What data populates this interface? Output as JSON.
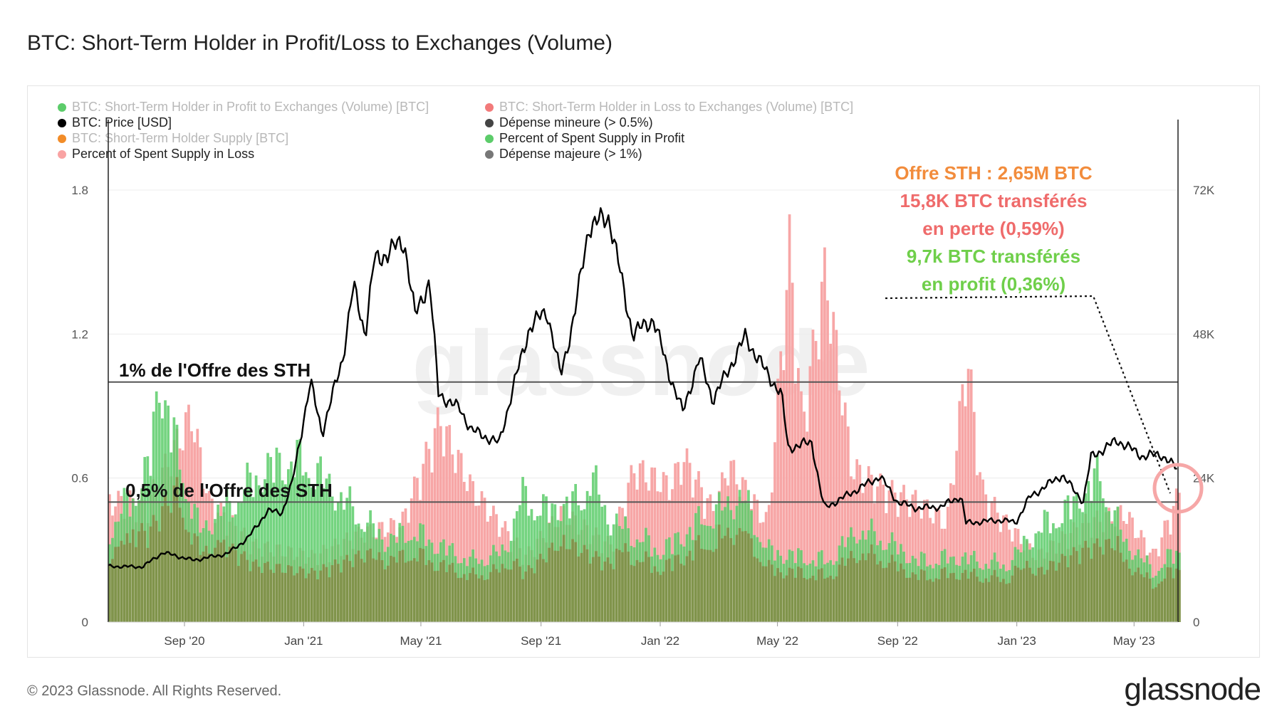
{
  "title": "BTC: Short-Term Holder in Profit/Loss to Exchanges (Volume)",
  "footer": {
    "copyright": "© 2023 Glassnode. All Rights Reserved.",
    "brand": "glassnode"
  },
  "watermark": "glassnode",
  "legend": [
    {
      "label": "BTC: Short-Term Holder in Profit to Exchanges (Volume) [BTC]",
      "color": "#5ccc6a",
      "state": "faded"
    },
    {
      "label": "BTC: Short-Term Holder in Loss to Exchanges (Volume) [BTC]",
      "color": "#f27a7a",
      "state": "faded"
    },
    {
      "label": "BTC: Price [USD]",
      "color": "#000000",
      "state": "active"
    },
    {
      "label": "Dépense mineure (> 0.5%)",
      "color": "#444444",
      "state": "active"
    },
    {
      "label": "BTC: Short-Term Holder Supply [BTC]",
      "color": "#f28c28",
      "state": "faded"
    },
    {
      "label": "Percent of Spent Supply in Profit",
      "color": "#5ccc6a",
      "state": "active"
    },
    {
      "label": "Percent of Spent Supply in Loss",
      "color": "#f9a3a3",
      "state": "active"
    },
    {
      "label": "Dépense majeure (> 1%)",
      "color": "#777777",
      "state": "active"
    }
  ],
  "annotations": {
    "line1": "Offre STH : 2,65M BTC",
    "line2": "15,8K BTC transférés",
    "line3": "en perte (0,59%)",
    "line4": "9,7k BTC transférés",
    "line5": "en profit (0,36%)",
    "threshold_major": "1% de l'Offre des STH",
    "threshold_minor": "0,5% de l'Offre des STH",
    "colors": {
      "orange": "#f28c3c",
      "red": "#ef6b6b",
      "green": "#6fcf4a"
    }
  },
  "chart_data": {
    "type": "area",
    "x_start": "2020-06-15",
    "x_end": "2023-06-15",
    "x_ticks": [
      "Sep '20",
      "Jan '21",
      "May '21",
      "Sep '21",
      "Jan '22",
      "May '22",
      "Sep '22",
      "Jan '23",
      "May '23"
    ],
    "x_tick_dates": [
      "2020-09-01",
      "2021-01-01",
      "2021-05-01",
      "2021-09-01",
      "2022-01-01",
      "2022-05-01",
      "2022-09-01",
      "2023-01-01",
      "2023-05-01"
    ],
    "y_left": {
      "label": "",
      "ylim": [
        0,
        1.8
      ],
      "ticks": [
        "0",
        "0.6",
        "1.2",
        "1.8"
      ]
    },
    "y_right": {
      "label": "",
      "ylim": [
        0,
        72000
      ],
      "ticks": [
        "0",
        "24K",
        "48K",
        "72K"
      ]
    },
    "thresholds": [
      {
        "name": "Dépense majeure (> 1%)",
        "value": 1.0
      },
      {
        "name": "Dépense mineure (> 0.5%)",
        "value": 0.5
      }
    ],
    "series": [
      {
        "name": "BTC: Price [USD]",
        "axis": "right",
        "points": [
          [
            "2020-06-15",
            9300
          ],
          [
            "2020-07-20",
            9200
          ],
          [
            "2020-08-10",
            11600
          ],
          [
            "2020-09-10",
            10300
          ],
          [
            "2020-10-15",
            11400
          ],
          [
            "2020-11-05",
            14000
          ],
          [
            "2020-11-25",
            18500
          ],
          [
            "2020-12-10",
            18300
          ],
          [
            "2020-12-20",
            23000
          ],
          [
            "2021-01-08",
            40000
          ],
          [
            "2021-01-20",
            31500
          ],
          [
            "2021-02-10",
            44000
          ],
          [
            "2021-02-21",
            56000
          ],
          [
            "2021-03-05",
            48000
          ],
          [
            "2021-03-14",
            60000
          ],
          [
            "2021-04-14",
            63500
          ],
          [
            "2021-04-25",
            51000
          ],
          [
            "2021-05-10",
            57000
          ],
          [
            "2021-05-19",
            38000
          ],
          [
            "2021-06-10",
            35500
          ],
          [
            "2021-06-22",
            32000
          ],
          [
            "2021-07-20",
            29800
          ],
          [
            "2021-08-05",
            40000
          ],
          [
            "2021-08-20",
            49000
          ],
          [
            "2021-09-07",
            52000
          ],
          [
            "2021-09-21",
            41000
          ],
          [
            "2021-10-05",
            51000
          ],
          [
            "2021-10-20",
            66000
          ],
          [
            "2021-11-10",
            67500
          ],
          [
            "2021-11-26",
            54000
          ],
          [
            "2021-12-04",
            48000
          ],
          [
            "2021-12-25",
            50500
          ],
          [
            "2022-01-10",
            41500
          ],
          [
            "2022-01-24",
            35000
          ],
          [
            "2022-02-10",
            44000
          ],
          [
            "2022-02-24",
            37000
          ],
          [
            "2022-03-29",
            47500
          ],
          [
            "2022-04-20",
            41500
          ],
          [
            "2022-05-05",
            38000
          ],
          [
            "2022-05-12",
            29000
          ],
          [
            "2022-06-05",
            30000
          ],
          [
            "2022-06-14",
            22000
          ],
          [
            "2022-06-18",
            19000
          ],
          [
            "2022-07-10",
            21000
          ],
          [
            "2022-08-14",
            24300
          ],
          [
            "2022-09-01",
            20000
          ],
          [
            "2022-09-20",
            19000
          ],
          [
            "2022-10-15",
            19200
          ],
          [
            "2022-11-05",
            21000
          ],
          [
            "2022-11-10",
            16500
          ],
          [
            "2022-12-15",
            17000
          ],
          [
            "2022-12-31",
            16600
          ],
          [
            "2023-01-14",
            20800
          ],
          [
            "2023-02-16",
            24500
          ],
          [
            "2023-03-10",
            20100
          ],
          [
            "2023-03-18",
            27500
          ],
          [
            "2023-04-14",
            30300
          ],
          [
            "2023-05-10",
            27600
          ],
          [
            "2023-05-28",
            28000
          ],
          [
            "2023-06-15",
            25400
          ]
        ]
      },
      {
        "name": "Percent of Spent Supply in Profit",
        "axis": "left",
        "points": [
          [
            "2020-06-15",
            0.45
          ],
          [
            "2020-07-25",
            0.75
          ],
          [
            "2020-08-05",
            1.22
          ],
          [
            "2020-08-20",
            0.9
          ],
          [
            "2020-09-15",
            0.45
          ],
          [
            "2020-10-20",
            0.6
          ],
          [
            "2020-11-20",
            0.75
          ],
          [
            "2020-12-20",
            0.8
          ],
          [
            "2021-01-10",
            0.75
          ],
          [
            "2021-02-20",
            0.55
          ],
          [
            "2021-03-25",
            0.4
          ],
          [
            "2021-04-20",
            0.45
          ],
          [
            "2021-05-10",
            0.4
          ],
          [
            "2021-06-20",
            0.3
          ],
          [
            "2021-07-25",
            0.35
          ],
          [
            "2021-08-10",
            0.62
          ],
          [
            "2021-09-05",
            0.55
          ],
          [
            "2021-10-10",
            0.6
          ],
          [
            "2021-10-20",
            0.72
          ],
          [
            "2021-11-10",
            0.5
          ],
          [
            "2022-01-01",
            0.35
          ],
          [
            "2022-02-10",
            0.5
          ],
          [
            "2022-03-25",
            0.62
          ],
          [
            "2022-04-20",
            0.35
          ],
          [
            "2022-06-20",
            0.3
          ],
          [
            "2022-07-20",
            0.45
          ],
          [
            "2022-08-14",
            0.42
          ],
          [
            "2022-09-20",
            0.3
          ],
          [
            "2022-11-01",
            0.32
          ],
          [
            "2022-12-20",
            0.28
          ],
          [
            "2023-01-20",
            0.45
          ],
          [
            "2023-02-20",
            0.55
          ],
          [
            "2023-03-25",
            0.72
          ],
          [
            "2023-04-20",
            0.4
          ],
          [
            "2023-05-20",
            0.25
          ],
          [
            "2023-06-15",
            0.36
          ]
        ]
      },
      {
        "name": "Percent of Spent Supply in Loss",
        "axis": "left",
        "points": [
          [
            "2020-06-15",
            0.55
          ],
          [
            "2020-07-25",
            0.55
          ],
          [
            "2020-09-07",
            0.95
          ],
          [
            "2020-09-25",
            0.55
          ],
          [
            "2020-11-10",
            0.35
          ],
          [
            "2021-01-10",
            0.3
          ],
          [
            "2021-02-25",
            0.4
          ],
          [
            "2021-04-10",
            0.45
          ],
          [
            "2021-05-19",
            0.92
          ],
          [
            "2021-06-22",
            0.6
          ],
          [
            "2021-07-20",
            0.45
          ],
          [
            "2021-08-15",
            0.3
          ],
          [
            "2021-09-21",
            0.5
          ],
          [
            "2021-11-10",
            0.35
          ],
          [
            "2021-12-04",
            0.7
          ],
          [
            "2022-01-10",
            0.62
          ],
          [
            "2022-01-24",
            0.75
          ],
          [
            "2022-02-24",
            0.5
          ],
          [
            "2022-03-10",
            0.72
          ],
          [
            "2022-04-20",
            0.45
          ],
          [
            "2022-05-12",
            1.7
          ],
          [
            "2022-05-25",
            0.9
          ],
          [
            "2022-06-18",
            1.6
          ],
          [
            "2022-07-15",
            0.7
          ],
          [
            "2022-08-20",
            0.6
          ],
          [
            "2022-09-20",
            0.55
          ],
          [
            "2022-10-20",
            0.45
          ],
          [
            "2022-11-10",
            1.22
          ],
          [
            "2022-11-25",
            0.6
          ],
          [
            "2022-12-20",
            0.45
          ],
          [
            "2023-01-20",
            0.3
          ],
          [
            "2023-03-10",
            0.45
          ],
          [
            "2023-04-20",
            0.5
          ],
          [
            "2023-05-20",
            0.3
          ],
          [
            "2023-06-15",
            0.59
          ]
        ]
      }
    ]
  }
}
